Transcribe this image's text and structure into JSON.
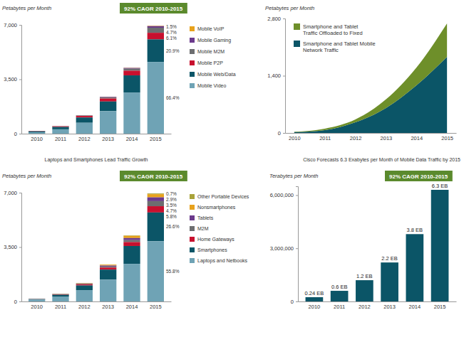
{
  "chart_data": [
    {
      "type": "bar",
      "stacked": true,
      "subtitle": "92% CAGR 2010-2015",
      "y_label": "Petabytes per Month",
      "categories": [
        "2010",
        "2011",
        "2012",
        "2013",
        "2014",
        "2015"
      ],
      "ylim": [
        0,
        7000
      ],
      "yticks": [
        0,
        {
          "value": 3500,
          "label": "3,500"
        },
        {
          "value": 7000,
          "label": "7,000"
        }
      ],
      "grid": false,
      "legend": "right",
      "series": [
        {
          "name": "Mobile VoIP",
          "color": "#e8a21c",
          "values": [
            2,
            5,
            6,
            15,
            20,
            28
          ]
        },
        {
          "name": "Mobile Gaming",
          "color": "#6b3a8c",
          "values": [
            3,
            8,
            14,
            35,
            50,
            104
          ]
        },
        {
          "name": "Mobile M2M",
          "color": "#6d6e70",
          "values": [
            5,
            12,
            30,
            70,
            130,
            327
          ]
        },
        {
          "name": "Mobile P2P",
          "color": "#c8102e",
          "values": [
            20,
            45,
            100,
            190,
            300,
            424
          ]
        },
        {
          "name": "Mobile Web/Data",
          "color": "#0b5567",
          "values": [
            60,
            150,
            340,
            620,
            1100,
            1452
          ]
        },
        {
          "name": "Mobile Video",
          "color": "#6fa3b5",
          "values": [
            90,
            280,
            700,
            1450,
            2650,
            4615
          ]
        }
      ],
      "annotations": [
        {
          "text": "1.5%",
          "series": "Mobile Gaming"
        },
        {
          "text": "4.7%",
          "series": "Mobile M2M"
        },
        {
          "text": "6.1%",
          "series": "Mobile P2P"
        },
        {
          "text": "20.9%",
          "series": "Mobile Web/Data"
        },
        {
          "text": "66.4%",
          "series": "Mobile Video"
        }
      ]
    },
    {
      "type": "area",
      "stacked": true,
      "y_label": "Petabytes per Month",
      "categories": [
        "2010",
        "2011",
        "2012",
        "2013",
        "2014",
        "2015"
      ],
      "ylim": [
        0,
        2800
      ],
      "yticks": [
        0,
        {
          "value": 1400,
          "label": "1,400"
        },
        {
          "value": 2800,
          "label": "2,800"
        }
      ],
      "grid": false,
      "legend": "top-left",
      "series": [
        {
          "name": "Smartphone and Tablet Traffic Offloaded to Fixed",
          "color": "#6e8f2a",
          "values": [
            10,
            35,
            70,
            210,
            435,
            820
          ]
        },
        {
          "name": "Smartphone and Tablet Mobile Network Traffic",
          "color": "#0b5567",
          "values": [
            20,
            70,
            260,
            610,
            1165,
            1860
          ]
        }
      ]
    },
    {
      "type": "bar",
      "stacked": true,
      "title": "Laptops and Smartphones Lead Traffic Growth",
      "subtitle": "92% CAGR 2010-2015",
      "y_label": "Petabytes per Month",
      "categories": [
        "2010",
        "2011",
        "2012",
        "2013",
        "2014",
        "2015"
      ],
      "ylim": [
        0,
        7000
      ],
      "yticks": [
        0,
        {
          "value": 3500,
          "label": "3,500"
        },
        {
          "value": 7000,
          "label": "7,000"
        }
      ],
      "grid": false,
      "legend": "right",
      "series": [
        {
          "name": "Other Portable Devices",
          "color": "#a9a33a",
          "values": [
            1,
            3,
            5,
            10,
            30,
            49
          ]
        },
        {
          "name": "Nonsmartphones",
          "color": "#e8a21c",
          "values": [
            6,
            17,
            30,
            60,
            140,
            202
          ]
        },
        {
          "name": "Tablets",
          "color": "#6b3a8c",
          "values": [
            3,
            10,
            25,
            60,
            130,
            243
          ]
        },
        {
          "name": "M2M",
          "color": "#6d6e70",
          "values": [
            5,
            12,
            30,
            70,
            130,
            327
          ]
        },
        {
          "name": "Home Gateways",
          "color": "#c8102e",
          "values": [
            10,
            28,
            70,
            130,
            250,
            403
          ]
        },
        {
          "name": "Smartphones",
          "color": "#0b5567",
          "values": [
            35,
            110,
            300,
            650,
            1150,
            1849
          ]
        },
        {
          "name": "Laptops and Netbooks",
          "color": "#6fa3b5",
          "values": [
            120,
            320,
            730,
            1400,
            2420,
            3877
          ]
        }
      ],
      "annotations": [
        {
          "text": "0.7%",
          "series": "Other Portable Devices"
        },
        {
          "text": "2.9%",
          "series": "Nonsmartphones"
        },
        {
          "text": "3.5%",
          "series": "Tablets"
        },
        {
          "text": "4.7%",
          "series": "M2M"
        },
        {
          "text": "5.8%",
          "series": "Home Gateways"
        },
        {
          "text": "26.6%",
          "series": "Smartphones"
        },
        {
          "text": "55.8%",
          "series": "Laptops and Netbooks"
        }
      ]
    },
    {
      "type": "bar",
      "title": "Cisco Forecasts 6.3 Exabytes per Month of Mobile Data Traffic by 2015",
      "subtitle": "92% CAGR 2010-2015",
      "y_label": "Terabytes per Month",
      "categories": [
        "2010",
        "2011",
        "2012",
        "2013",
        "2014",
        "2015"
      ],
      "values": [
        240000,
        600000,
        1200000,
        2200000,
        3800000,
        6300000
      ],
      "value_labels": [
        "0.24 EB",
        "0.6 EB",
        "1.2 EB",
        "2.2 EB",
        "3.8 EB",
        "6.3 EB"
      ],
      "data_labels": true,
      "color": "#0b5567",
      "ylim": [
        0,
        6500000
      ],
      "yticks": [
        0,
        {
          "value": 3000000,
          "label": "3,000,000"
        },
        {
          "value": 6000000,
          "label": "6,000,000"
        }
      ],
      "grid": false
    }
  ]
}
